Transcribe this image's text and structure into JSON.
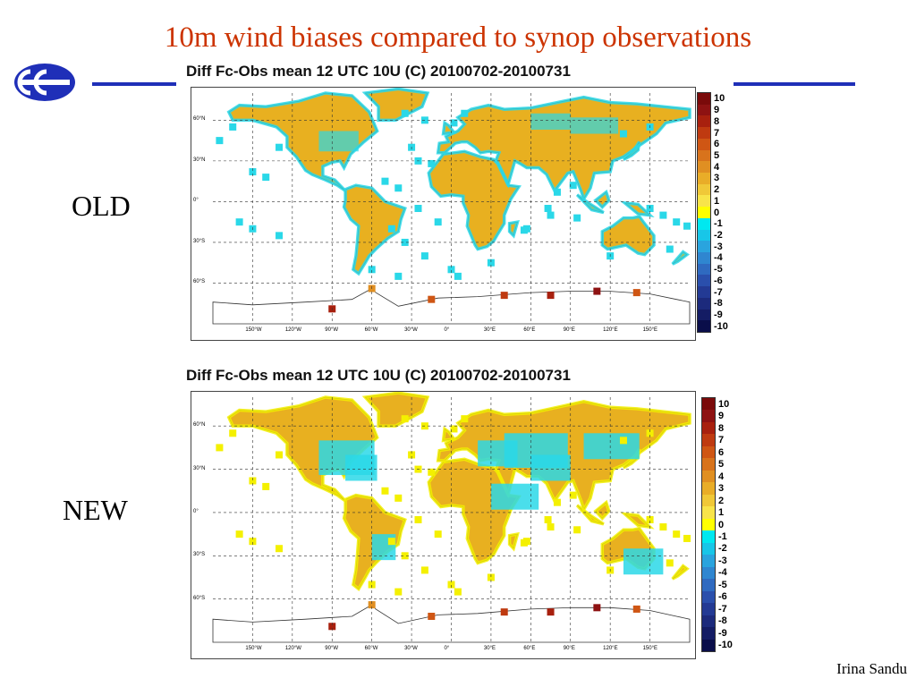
{
  "slide": {
    "title": "10m wind biases compared to synop observations",
    "author": "Irina Sandu"
  },
  "panels": [
    {
      "id": "old",
      "side_label": "OLD",
      "title": "Diff Fc-Obs mean 12 UTC 10U (C) 20100702-20100731",
      "dominant_bias": "positive",
      "colors": {
        "land_fill": "#e8b020",
        "ocean_box": "#2ad8e8",
        "cold_patch": "#2ad8e8"
      }
    },
    {
      "id": "new",
      "side_label": "NEW",
      "title": "Diff Fc-Obs mean 12 UTC 10U (C) 20100702-20100731",
      "dominant_bias": "mixed",
      "colors": {
        "land_fill": "#e8b020",
        "ocean_box": "#f4f000",
        "cold_patch": "#2ad8e8"
      }
    }
  ],
  "map_axes": {
    "lat_labels": [
      "60°N",
      "30°N",
      "0°",
      "30°S",
      "60°S"
    ],
    "lon_labels": [
      "150°W",
      "120°W",
      "90°W",
      "60°W",
      "30°W",
      "0°",
      "30°E",
      "60°E",
      "90°E",
      "120°E",
      "150°E"
    ]
  },
  "colorbar": {
    "labels": [
      "10",
      "9",
      "8",
      "7",
      "6",
      "5",
      "4",
      "3",
      "2",
      "1",
      "0",
      "-1",
      "-2",
      "-3",
      "-4",
      "-5",
      "-6",
      "-7",
      "-8",
      "-9",
      "-10"
    ],
    "colors": [
      "#7a0a0a",
      "#8e1212",
      "#a8200e",
      "#bf3a10",
      "#cf5614",
      "#d8731c",
      "#e08f22",
      "#e9ad28",
      "#f0c838",
      "#f8e44a",
      "#ffff00",
      "#00e8f0",
      "#18c6e8",
      "#2aa4de",
      "#2f86d0",
      "#2f6ac0",
      "#2a4fac",
      "#233a94",
      "#1c2a7c",
      "#141c64",
      "#0a0e4a"
    ]
  }
}
